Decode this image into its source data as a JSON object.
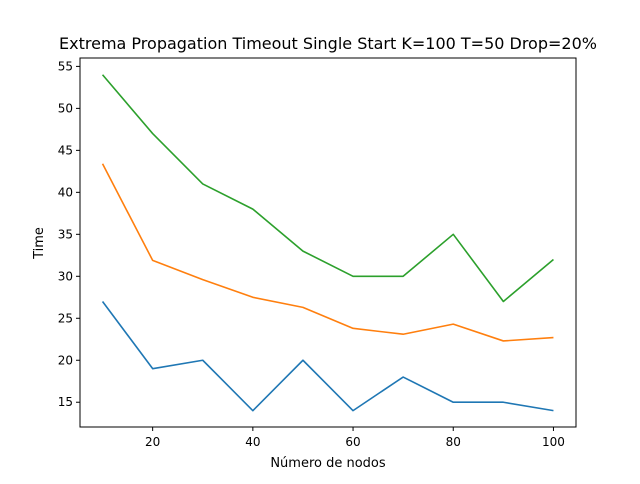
{
  "chart_data": {
    "type": "line",
    "title": "Extrema Propagation Timeout Single Start K=100 T=50 Drop=20%",
    "xlabel": "Número de nodos",
    "ylabel": "Time",
    "xlim": [
      5.5,
      104.5
    ],
    "ylim": [
      12.05,
      56.0
    ],
    "xticks": [
      20,
      40,
      60,
      80,
      100
    ],
    "yticks": [
      15,
      20,
      25,
      30,
      35,
      40,
      45,
      50,
      55
    ],
    "x": [
      10,
      20,
      30,
      40,
      50,
      60,
      70,
      80,
      90,
      100
    ],
    "grid": false,
    "series": [
      {
        "color": "#1f77b4",
        "values": [
          27,
          19,
          20,
          14,
          20,
          14,
          18,
          15,
          15,
          14
        ]
      },
      {
        "color": "#ff7f0e",
        "values": [
          43.4,
          31.9,
          29.6,
          27.5,
          26.3,
          23.8,
          23.1,
          24.3,
          22.3,
          22.7
        ]
      },
      {
        "color": "#2ca02c",
        "values": [
          54,
          47,
          41,
          38,
          33,
          30,
          30,
          35,
          27,
          32
        ]
      }
    ]
  }
}
